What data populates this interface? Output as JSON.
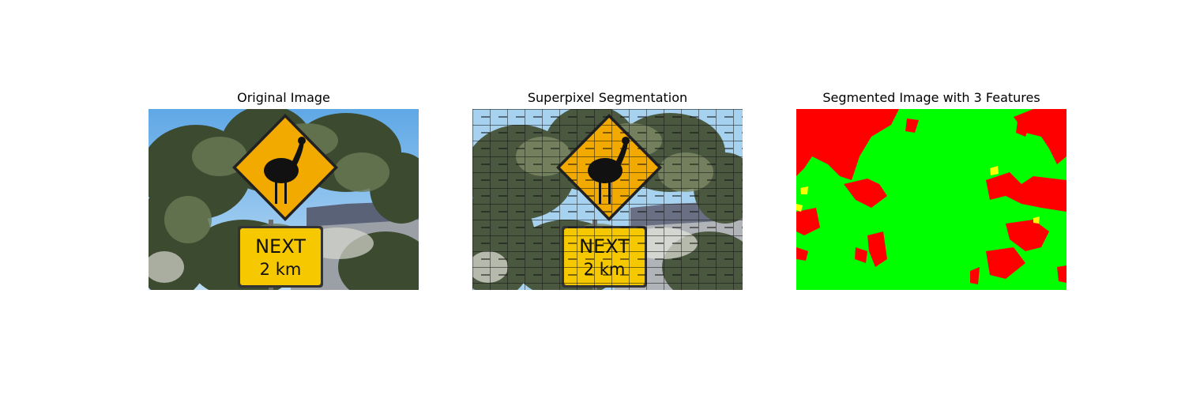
{
  "figure": {
    "panels": [
      {
        "title": "Original Image"
      },
      {
        "title": "Superpixel Segmentation"
      },
      {
        "title": "Segmented Image with 3 Features"
      }
    ],
    "sign": {
      "line1": "NEXT",
      "line2": "2 km"
    },
    "segment_colors": {
      "feature_a": "#ff0000",
      "feature_b": "#00ff00",
      "feature_c": "#ffff00"
    }
  }
}
